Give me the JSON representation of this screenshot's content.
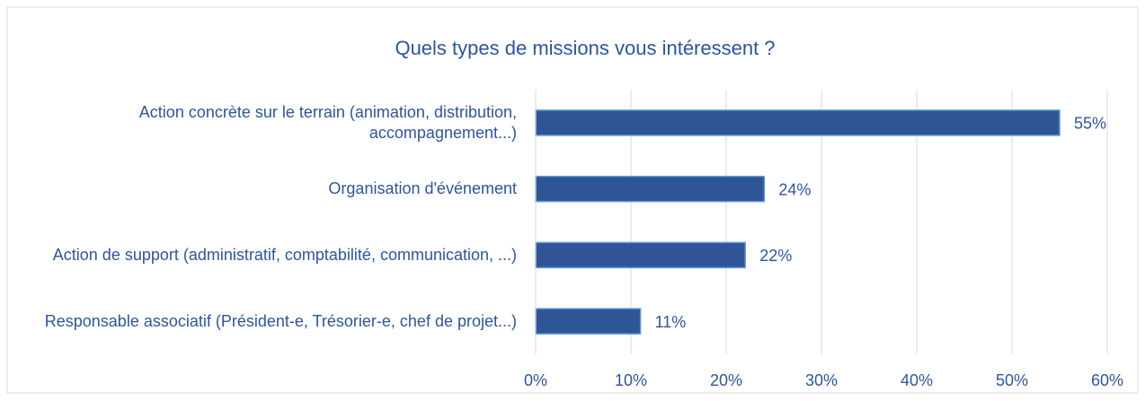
{
  "chart_data": {
    "type": "bar",
    "orientation": "horizontal",
    "title": "Quels types de missions vous intéressent ?",
    "categories": [
      "Action concrète sur le terrain (animation, distribution, accompagnement...)",
      "Organisation d'événement",
      "Action de support (administratif, comptabilité, communication, ...)",
      "Responsable associatif (Président-e, Trésorier-e, chef de projet...)"
    ],
    "values": [
      55,
      24,
      22,
      11
    ],
    "value_labels": [
      "55%",
      "24%",
      "22%",
      "11%"
    ],
    "color": "#2f5597",
    "xlim": [
      0,
      60
    ],
    "xticks": [
      {
        "value": 0,
        "label": "0%"
      },
      {
        "value": 10,
        "label": "10%"
      },
      {
        "value": 20,
        "label": "20%"
      },
      {
        "value": 30,
        "label": "30%"
      },
      {
        "value": 40,
        "label": "40%"
      },
      {
        "value": 50,
        "label": "50%"
      },
      {
        "value": 60,
        "label": "60%"
      }
    ],
    "grid": true
  }
}
